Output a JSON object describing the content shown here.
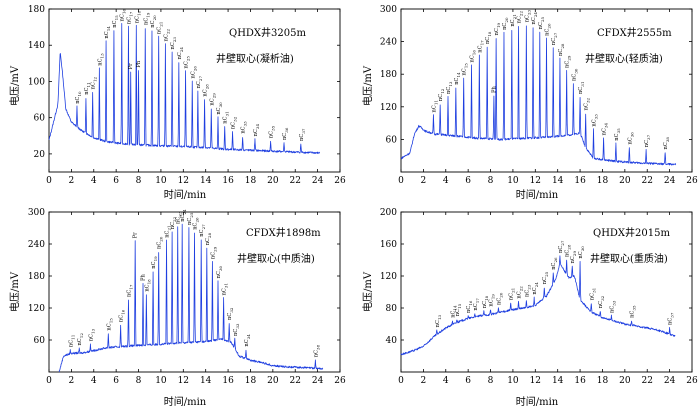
{
  "chart_data": [
    {
      "type": "line",
      "id": "p1",
      "title": "QHDX井3205m",
      "subtitle": "井壁取心(凝析油)",
      "xlabel": "时间/min",
      "ylabel": "电压/mV",
      "xlim": [
        0,
        26
      ],
      "ylim": [
        0,
        180
      ],
      "xticks": [
        0,
        2,
        4,
        6,
        8,
        10,
        12,
        14,
        16,
        18,
        20,
        22,
        24,
        26
      ],
      "yticks": [
        20,
        60,
        100,
        140,
        180
      ],
      "line_color": "#1f3fe0",
      "grid": false,
      "baseline": [
        [
          0,
          35
        ],
        [
          0.8,
          75
        ],
        [
          1.0,
          133
        ],
        [
          1.2,
          110
        ],
        [
          1.5,
          70
        ],
        [
          2.0,
          55
        ],
        [
          2.5,
          50
        ],
        [
          3,
          45
        ],
        [
          4,
          38
        ],
        [
          5,
          34
        ],
        [
          6,
          32
        ],
        [
          8,
          30
        ],
        [
          10,
          29
        ],
        [
          12,
          28
        ],
        [
          14,
          27
        ],
        [
          16,
          25
        ],
        [
          18,
          24
        ],
        [
          20,
          23
        ],
        [
          22,
          22
        ],
        [
          24.2,
          21
        ]
      ],
      "peaks": [
        {
          "x": 2.5,
          "y": 72,
          "label": "nC10"
        },
        {
          "x": 3.3,
          "y": 82,
          "label": "nC11"
        },
        {
          "x": 3.9,
          "y": 88,
          "label": "nC12"
        },
        {
          "x": 4.5,
          "y": 114,
          "label": "nC13"
        },
        {
          "x": 5.1,
          "y": 144,
          "label": "nC14"
        },
        {
          "x": 5.8,
          "y": 156,
          "label": "nC15"
        },
        {
          "x": 6.5,
          "y": 163,
          "label": "nC16"
        },
        {
          "x": 7.1,
          "y": 160,
          "label": "nC17"
        },
        {
          "x": 7.3,
          "y": 110,
          "label": "Pr"
        },
        {
          "x": 7.8,
          "y": 161,
          "label": "nC18"
        },
        {
          "x": 8.0,
          "y": 112,
          "label": "Ph"
        },
        {
          "x": 8.6,
          "y": 159,
          "label": "nC19"
        },
        {
          "x": 9.2,
          "y": 156,
          "label": "nC20"
        },
        {
          "x": 9.8,
          "y": 149,
          "label": "nC21"
        },
        {
          "x": 10.4,
          "y": 141,
          "label": "nC22"
        },
        {
          "x": 11.0,
          "y": 132,
          "label": "nC23"
        },
        {
          "x": 11.6,
          "y": 121,
          "label": "nC24"
        },
        {
          "x": 12.2,
          "y": 111,
          "label": "nC25"
        },
        {
          "x": 12.8,
          "y": 100,
          "label": "nC26"
        },
        {
          "x": 13.3,
          "y": 89,
          "label": "nC27"
        },
        {
          "x": 13.9,
          "y": 80,
          "label": "nC28"
        },
        {
          "x": 14.5,
          "y": 70,
          "label": "nC29"
        },
        {
          "x": 15.1,
          "y": 60,
          "label": "nC30"
        },
        {
          "x": 15.7,
          "y": 50,
          "label": "nC31"
        },
        {
          "x": 16.4,
          "y": 44,
          "label": "nC32"
        },
        {
          "x": 17.3,
          "y": 39,
          "label": "nC33"
        },
        {
          "x": 18.4,
          "y": 36,
          "label": "nC34"
        },
        {
          "x": 19.8,
          "y": 34,
          "label": "nC35"
        },
        {
          "x": 21.0,
          "y": 32,
          "label": "nC36"
        },
        {
          "x": 22.5,
          "y": 31,
          "label": "nC37"
        }
      ]
    },
    {
      "type": "line",
      "id": "p2",
      "title": "CFDX井2555m",
      "subtitle": "井壁取心(轻质油)",
      "xlabel": "时间/min",
      "ylabel": "电压/mV",
      "xlim": [
        0,
        26
      ],
      "ylim": [
        0,
        300
      ],
      "xticks": [
        0,
        2,
        4,
        6,
        8,
        10,
        12,
        14,
        16,
        18,
        20,
        22,
        24,
        26
      ],
      "yticks": [
        60,
        120,
        180,
        240,
        300
      ],
      "line_color": "#1f3fe0",
      "grid": false,
      "baseline": [
        [
          0,
          25
        ],
        [
          0.8,
          35
        ],
        [
          1.2,
          70
        ],
        [
          1.6,
          85
        ],
        [
          2.2,
          75
        ],
        [
          3,
          70
        ],
        [
          5,
          66
        ],
        [
          7,
          62
        ],
        [
          9,
          60
        ],
        [
          11,
          62
        ],
        [
          13,
          64
        ],
        [
          15,
          68
        ],
        [
          16,
          72
        ],
        [
          16.5,
          45
        ],
        [
          17.2,
          25
        ],
        [
          19,
          20
        ],
        [
          21,
          17
        ],
        [
          23,
          15
        ],
        [
          24.6,
          14
        ]
      ],
      "peaks": [
        {
          "x": 2.9,
          "y": 104,
          "label": "nC11"
        },
        {
          "x": 3.5,
          "y": 125,
          "label": "nC12"
        },
        {
          "x": 4.2,
          "y": 138,
          "label": "nC13"
        },
        {
          "x": 4.9,
          "y": 155,
          "label": "nC14"
        },
        {
          "x": 5.6,
          "y": 172,
          "label": "nC15"
        },
        {
          "x": 6.3,
          "y": 196,
          "label": "nC16"
        },
        {
          "x": 7.0,
          "y": 214,
          "label": "nC17"
        },
        {
          "x": 7.7,
          "y": 230,
          "label": "nC18"
        },
        {
          "x": 8.3,
          "y": 140,
          "label": "Ph"
        },
        {
          "x": 8.5,
          "y": 246,
          "label": "nC19"
        },
        {
          "x": 9.2,
          "y": 256,
          "label": "nC20"
        },
        {
          "x": 9.9,
          "y": 262,
          "label": "nC21"
        },
        {
          "x": 10.5,
          "y": 268,
          "label": "nC22"
        },
        {
          "x": 11.2,
          "y": 270,
          "label": "nC23"
        },
        {
          "x": 11.8,
          "y": 266,
          "label": "nC24"
        },
        {
          "x": 12.4,
          "y": 257,
          "label": "nC25"
        },
        {
          "x": 13.0,
          "y": 245,
          "label": "nC26"
        },
        {
          "x": 13.6,
          "y": 228,
          "label": "nC27"
        },
        {
          "x": 14.2,
          "y": 208,
          "label": "nC28"
        },
        {
          "x": 14.8,
          "y": 186,
          "label": "nC29"
        },
        {
          "x": 15.4,
          "y": 162,
          "label": "nC30"
        },
        {
          "x": 16.0,
          "y": 138,
          "label": "nC31"
        },
        {
          "x": 16.5,
          "y": 108,
          "label": "nC32"
        },
        {
          "x": 17.2,
          "y": 78,
          "label": "nC33"
        },
        {
          "x": 18.1,
          "y": 62,
          "label": "nC34"
        },
        {
          "x": 19.2,
          "y": 52,
          "label": "nC35"
        },
        {
          "x": 20.4,
          "y": 45,
          "label": "nC36"
        },
        {
          "x": 21.9,
          "y": 40,
          "label": "nC37"
        },
        {
          "x": 23.6,
          "y": 36,
          "label": "nC38"
        }
      ]
    },
    {
      "type": "line",
      "id": "p3",
      "title": "CFDX井1898m",
      "subtitle": "井壁取心(中质油)",
      "xlabel": "时间/min",
      "ylabel": "电压/mV",
      "xlim": [
        0,
        26
      ],
      "ylim": [
        0,
        300
      ],
      "xticks": [
        0,
        2,
        4,
        6,
        8,
        10,
        12,
        14,
        16,
        18,
        20,
        22,
        24,
        26
      ],
      "yticks": [
        60,
        120,
        180,
        240,
        300
      ],
      "line_color": "#1f3fe0",
      "grid": false,
      "baseline": [
        [
          0.9,
          0
        ],
        [
          1.3,
          30
        ],
        [
          2,
          35
        ],
        [
          3,
          36
        ],
        [
          4,
          40
        ],
        [
          5,
          45
        ],
        [
          6,
          47
        ],
        [
          8,
          50
        ],
        [
          10,
          52
        ],
        [
          12,
          55
        ],
        [
          14,
          57
        ],
        [
          15.5,
          62
        ],
        [
          16.3,
          55
        ],
        [
          17,
          30
        ],
        [
          18,
          22
        ],
        [
          19,
          18
        ],
        [
          20,
          12
        ],
        [
          21,
          10
        ],
        [
          23,
          8
        ],
        [
          24.5,
          6
        ]
      ],
      "peaks": [
        {
          "x": 1.9,
          "y": 41,
          "label": "nC11"
        },
        {
          "x": 2.7,
          "y": 44,
          "label": "nC12"
        },
        {
          "x": 3.7,
          "y": 52,
          "label": "nC13"
        },
        {
          "x": 5.3,
          "y": 72,
          "label": "nC15"
        },
        {
          "x": 6.4,
          "y": 88,
          "label": "nC16"
        },
        {
          "x": 7.1,
          "y": 135,
          "label": "nC17"
        },
        {
          "x": 7.7,
          "y": 245,
          "label": "Pr"
        },
        {
          "x": 8.4,
          "y": 165,
          "label": "Ph"
        },
        {
          "x": 8.7,
          "y": 145,
          "label": "nC18"
        },
        {
          "x": 9.3,
          "y": 188,
          "label": "nC19"
        },
        {
          "x": 9.8,
          "y": 225,
          "label": "nC20"
        },
        {
          "x": 10.5,
          "y": 246,
          "label": "nC21"
        },
        {
          "x": 11.0,
          "y": 262,
          "label": "nC22"
        },
        {
          "x": 11.5,
          "y": 272,
          "label": "nC23"
        },
        {
          "x": 11.9,
          "y": 276,
          "label": "nC24"
        },
        {
          "x": 12.5,
          "y": 270,
          "label": "nC25"
        },
        {
          "x": 13.0,
          "y": 261,
          "label": "nC26"
        },
        {
          "x": 13.6,
          "y": 248,
          "label": "nC27"
        },
        {
          "x": 14.1,
          "y": 232,
          "label": "nC28"
        },
        {
          "x": 14.6,
          "y": 206,
          "label": "nC29"
        },
        {
          "x": 15.1,
          "y": 170,
          "label": "nC30"
        },
        {
          "x": 15.6,
          "y": 138,
          "label": "nC31"
        },
        {
          "x": 16.1,
          "y": 92,
          "label": "nC32"
        },
        {
          "x": 16.6,
          "y": 62,
          "label": "nC33"
        },
        {
          "x": 17.6,
          "y": 42,
          "label": "nC34"
        },
        {
          "x": 23.8,
          "y": 22,
          "label": "nC38"
        }
      ]
    },
    {
      "type": "line",
      "id": "p4",
      "title": "QHDX井2015m",
      "subtitle": "井壁取心(重质油)",
      "xlabel": "时间/min",
      "ylabel": "电压/mV",
      "xlim": [
        0,
        26
      ],
      "ylim": [
        0,
        200
      ],
      "xticks": [
        0,
        2,
        4,
        6,
        8,
        10,
        12,
        14,
        16,
        18,
        20,
        22,
        24,
        26
      ],
      "yticks": [
        40,
        80,
        120,
        160,
        200
      ],
      "line_color": "#1f3fe0",
      "grid": false,
      "baseline": [
        [
          0,
          22
        ],
        [
          1,
          26
        ],
        [
          2,
          32
        ],
        [
          3,
          45
        ],
        [
          4,
          55
        ],
        [
          5,
          62
        ],
        [
          6,
          67
        ],
        [
          7,
          70
        ],
        [
          8,
          72
        ],
        [
          9,
          75
        ],
        [
          10,
          78
        ],
        [
          11,
          80
        ],
        [
          12,
          83
        ],
        [
          13,
          95
        ],
        [
          13.8,
          115
        ],
        [
          14.2,
          135
        ],
        [
          15,
          118
        ],
        [
          15.5,
          120
        ],
        [
          16,
          90
        ],
        [
          17,
          75
        ],
        [
          18,
          68
        ],
        [
          20,
          60
        ],
        [
          22,
          55
        ],
        [
          23,
          52
        ],
        [
          24.5,
          45
        ]
      ],
      "peaks": [
        {
          "x": 3.2,
          "y": 52,
          "label": "nC13"
        },
        {
          "x": 4.6,
          "y": 64,
          "label": "nC14"
        },
        {
          "x": 5.0,
          "y": 66,
          "label": "nC15"
        },
        {
          "x": 6.0,
          "y": 70,
          "label": "nC16"
        },
        {
          "x": 6.6,
          "y": 73,
          "label": "nC17"
        },
        {
          "x": 7.4,
          "y": 76,
          "label": "nC18"
        },
        {
          "x": 8.0,
          "y": 78,
          "label": "nC19"
        },
        {
          "x": 8.7,
          "y": 80,
          "label": "nC20"
        },
        {
          "x": 9.8,
          "y": 86,
          "label": "nC21"
        },
        {
          "x": 10.5,
          "y": 88,
          "label": "nC22"
        },
        {
          "x": 11.2,
          "y": 90,
          "label": "nC23"
        },
        {
          "x": 11.9,
          "y": 93,
          "label": "nC24"
        },
        {
          "x": 12.8,
          "y": 106,
          "label": "nC25"
        },
        {
          "x": 13.6,
          "y": 124,
          "label": "nC26"
        },
        {
          "x": 14.2,
          "y": 145,
          "label": "nC27"
        },
        {
          "x": 14.8,
          "y": 140,
          "label": "nC28"
        },
        {
          "x": 15.3,
          "y": 132,
          "label": "nC29"
        },
        {
          "x": 16.0,
          "y": 138,
          "label": "nC30"
        },
        {
          "x": 17.0,
          "y": 86,
          "label": "nC31"
        },
        {
          "x": 17.8,
          "y": 76,
          "label": "nC32"
        },
        {
          "x": 18.8,
          "y": 70,
          "label": "nC33"
        },
        {
          "x": 20.6,
          "y": 64,
          "label": "nC35"
        },
        {
          "x": 24.0,
          "y": 55,
          "label": "nC37"
        }
      ]
    }
  ]
}
